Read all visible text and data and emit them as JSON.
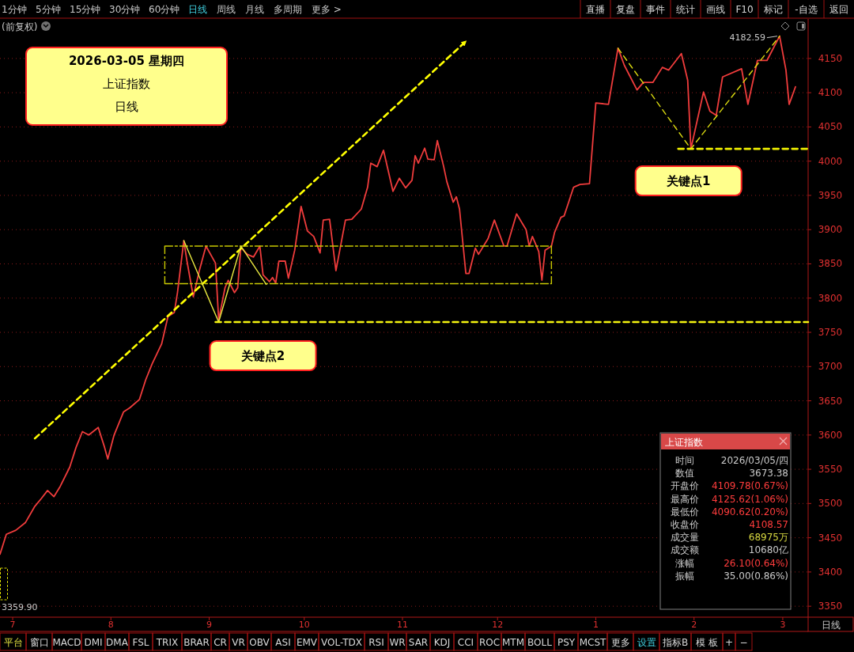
{
  "chart_data": {
    "type": "line",
    "title": "2026-03-05 星期四",
    "subtitle": "上证指数",
    "xlim": [
      "2025-06-27",
      "2026-03-09"
    ],
    "xticks": [
      {
        "value": "2025-07-01",
        "label": "7"
      },
      {
        "value": "2025-08-01",
        "label": "8"
      },
      {
        "value": "2025-09-01",
        "label": "9"
      },
      {
        "value": "2025-10-01",
        "label": "10"
      },
      {
        "value": "2025-11-01",
        "label": "11"
      },
      {
        "value": "2025-12-01",
        "label": "12"
      },
      {
        "value": "2026-01-01",
        "label": "1"
      },
      {
        "value": "2026-02-01",
        "label": "2"
      },
      {
        "value": "2026-03-01",
        "label": "3"
      }
    ],
    "ylim": [
      3334,
      4203
    ],
    "yticks": [
      3350,
      3400,
      3450,
      3500,
      3550,
      3600,
      3650,
      3700,
      3750,
      3800,
      3850,
      3900,
      3950,
      4000,
      4050,
      4100,
      4150
    ],
    "grid": "y",
    "series": [
      {
        "color": "#f03c3c",
        "x": [
          "2025-06-27",
          "2025-06-29",
          "2025-07-02",
          "2025-07-05",
          "2025-07-08",
          "2025-07-10",
          "2025-07-12",
          "2025-07-14",
          "2025-07-16",
          "2025-07-19",
          "2025-07-21",
          "2025-07-23",
          "2025-07-25",
          "2025-07-28",
          "2025-07-30",
          "2025-07-31",
          "2025-08-02",
          "2025-08-05",
          "2025-08-07",
          "2025-08-10",
          "2025-08-12",
          "2025-08-14",
          "2025-08-17",
          "2025-08-19",
          "2025-08-21",
          "2025-08-22",
          "2025-08-24",
          "2025-08-25",
          "2025-08-27",
          "2025-08-29",
          "2025-08-31",
          "2025-09-03",
          "2025-09-04",
          "2025-09-06",
          "2025-09-07",
          "2025-09-09",
          "2025-09-10",
          "2025-09-11",
          "2025-09-13",
          "2025-09-15",
          "2025-09-17",
          "2025-09-18",
          "2025-09-20",
          "2025-09-21",
          "2025-09-22",
          "2025-09-23",
          "2025-09-25",
          "2025-09-26",
          "2025-09-28",
          "2025-09-30",
          "2025-10-02",
          "2025-10-04",
          "2025-10-06",
          "2025-10-07",
          "2025-10-09",
          "2025-10-11",
          "2025-10-14",
          "2025-10-16",
          "2025-10-19",
          "2025-10-21",
          "2025-10-22",
          "2025-10-24",
          "2025-10-26",
          "2025-10-29",
          "2025-10-31",
          "2025-11-02",
          "2025-11-04",
          "2025-11-05",
          "2025-11-06",
          "2025-11-08",
          "2025-11-09",
          "2025-11-11",
          "2025-11-12",
          "2025-11-14",
          "2025-11-15",
          "2025-11-17",
          "2025-11-18",
          "2025-11-19",
          "2025-11-21",
          "2025-11-22",
          "2025-11-24",
          "2025-11-25",
          "2025-11-28",
          "2025-11-30",
          "2025-12-03",
          "2025-12-04",
          "2025-12-07",
          "2025-12-10",
          "2025-12-11",
          "2025-12-12",
          "2025-12-14",
          "2025-12-15",
          "2025-12-16",
          "2025-12-18",
          "2025-12-19",
          "2025-12-21",
          "2025-12-22",
          "2025-12-25",
          "2025-12-27",
          "2025-12-30",
          "2026-01-01",
          "2026-01-05",
          "2026-01-08",
          "2026-01-10",
          "2026-01-14",
          "2026-01-16",
          "2026-01-19",
          "2026-01-22",
          "2026-01-24",
          "2026-01-28",
          "2026-01-30",
          "2026-01-31",
          "2026-02-04",
          "2026-02-06",
          "2026-02-08",
          "2026-02-10",
          "2026-02-16",
          "2026-02-18",
          "2026-02-21",
          "2026-02-24",
          "2026-02-28",
          "2026-03-02",
          "2026-03-03",
          "2026-03-05"
        ],
        "values": [
          3426,
          3455,
          3461,
          3472,
          3496,
          3507,
          3519,
          3510,
          3525,
          3553,
          3582,
          3605,
          3600,
          3611,
          3582,
          3565,
          3600,
          3634,
          3640,
          3652,
          3681,
          3704,
          3733,
          3773,
          3779,
          3808,
          3884,
          3854,
          3802,
          3842,
          3876,
          3851,
          3768,
          3815,
          3826,
          3808,
          3815,
          3874,
          3864,
          3860,
          3876,
          3834,
          3824,
          3830,
          3822,
          3854,
          3854,
          3829,
          3870,
          3934,
          3898,
          3890,
          3866,
          3914,
          3915,
          3840,
          3914,
          3915,
          3930,
          3962,
          3997,
          3992,
          4016,
          3956,
          3975,
          3961,
          3972,
          4008,
          3997,
          4019,
          4003,
          4002,
          4030,
          3992,
          3970,
          3940,
          3948,
          3930,
          3836,
          3836,
          3873,
          3864,
          3887,
          3914,
          3876,
          3876,
          3923,
          3900,
          3876,
          3890,
          3868,
          3826,
          3870,
          3876,
          3896,
          3918,
          3920,
          3962,
          3966,
          3967,
          4085,
          4083,
          4165,
          4140,
          4104,
          4115,
          4115,
          4137,
          4133,
          4157,
          4118,
          4018,
          4101,
          4073,
          4067,
          4123,
          4135,
          4083,
          4147,
          4147,
          4182.59,
          4133,
          4083,
          4108.57
        ]
      },
      {
        "color": "#ffff00",
        "line_style": "dashed",
        "x": [
          "2025-07-08",
          "2025-11-21"
        ],
        "values": [
          3595,
          4175
        ]
      },
      {
        "color": "#c8c800",
        "line_style": "dashed",
        "x": [
          "2025-08-18",
          "2025-12-18"
        ],
        "values": [
          3876,
          3876
        ]
      },
      {
        "color": "#cccc04",
        "line_style": "dashed",
        "x": [
          "2025-08-18",
          "2025-12-18"
        ],
        "values": [
          3821,
          3821
        ]
      },
      {
        "color": "#e8e840",
        "line_style": "solid",
        "x": [
          "2025-08-24",
          "2025-09-04",
          "2025-09-11",
          "2025-09-19"
        ],
        "values": [
          3884,
          3765,
          3876,
          3820
        ]
      },
      {
        "color": "#dcdc10",
        "line_style": "dashed",
        "x": [
          "2026-01-08",
          "2026-01-31",
          "2026-02-28"
        ],
        "values": [
          4165,
          4018,
          4182.59
        ]
      },
      {
        "color": "#f0f000",
        "line_style": "dashed",
        "x": [
          "2026-01-27",
          "2026-03-09"
        ],
        "values": [
          4018,
          4018
        ]
      },
      {
        "color": "#f4f410",
        "line_style": "dashed",
        "x": [
          "2025-09-03",
          "2026-03-09"
        ],
        "values": [
          3765,
          3765
        ]
      }
    ],
    "annotations": [
      "日线",
      {
        "text": "关键点1",
        "x": "2026-01-31",
        "y": 4018
      },
      {
        "text": "关键点2",
        "x": "2025-09-04",
        "y": 3765
      },
      {
        "text": "4182.59",
        "x": "2026-02-28",
        "y": 4182.59
      },
      "3359.90",
      "(前复权)",
      "1分钟",
      "5分钟",
      "15分钟",
      "30分钟",
      "60分钟",
      "日线",
      "周线",
      "月线",
      "多周期",
      "更多 >",
      "直播",
      "复盘",
      "事件",
      "统计",
      "画线",
      "F10",
      "标记",
      "-自选",
      "返回",
      "平台",
      "窗口",
      "MACD",
      "DMI",
      "DMA",
      "FSL",
      "TRIX",
      "BRAR",
      "CR",
      "VR",
      "OBV",
      "ASI",
      "EMV",
      "VOL-TDX",
      "RSI",
      "WR",
      "SAR",
      "KDJ",
      "CCI",
      "ROC",
      "MTM",
      "BOLL",
      "PSY",
      "MCST",
      "更多",
      "设置",
      "指标B",
      "模 板",
      "+",
      "−",
      "日线",
      "上证指数",
      "时间",
      "2026/03/05/四",
      "数值",
      "3673.38",
      "开盘价",
      "4109.78(0.67%)",
      "最高价",
      "4125.62(1.06%)",
      "最低价",
      "4090.62(0.20%)",
      "收盘价",
      "4108.57",
      "成交量",
      "68975万",
      "成交额",
      "10680亿",
      "涨幅",
      "26.10(0.64%)",
      "振幅",
      "35.00(0.86%)"
    ]
  }
}
